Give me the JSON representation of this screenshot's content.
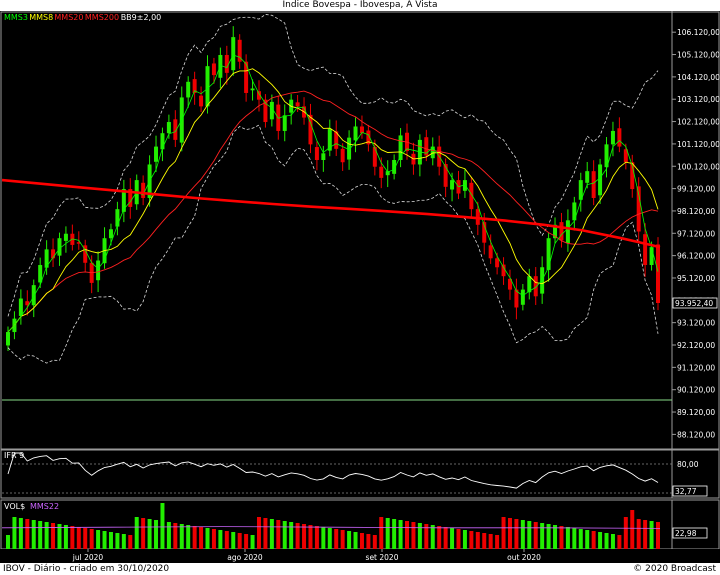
{
  "window": {
    "title": "Indice Bovespa - Ibovespa, A Vista"
  },
  "footer": {
    "left": "IBOV - Diário - criado em 30/10/2020",
    "right": "© 2020 Broadcast"
  },
  "colors": {
    "up": "#22ee00",
    "down": "#ee0000",
    "mms3": "#00ff00",
    "mms8": "#ffff00",
    "mms20": "#ff2020",
    "mms200": "#ff0000",
    "bands": "#dddddd",
    "volume_avg": "#cc66ff"
  },
  "chart_data": [
    {
      "type": "candlestick",
      "panel": "price",
      "legend": [
        {
          "label": "MMS3",
          "color": "#00ff00"
        },
        {
          "label": "MMS8",
          "color": "#ffff00"
        },
        {
          "label": "MMS20",
          "color": "#ff2020"
        },
        {
          "label": "MMS200",
          "color": "#ff2020"
        },
        {
          "label": "BB9±2,00",
          "color": "#ffffff"
        }
      ],
      "y_ticks": [
        "106.120,00",
        "105.120,00",
        "104.120,00",
        "103.120,00",
        "102.120,00",
        "101.120,00",
        "100.120,00",
        "99.120,00",
        "98.120,00",
        "97.120,00",
        "96.120,00",
        "95.120,00",
        "94.120,00",
        "93.120,00",
        "92.120,00",
        "91.120,00",
        "90.120,00",
        "89.120,00",
        "88.120,00"
      ],
      "ylim": [
        87600,
        106800
      ],
      "last_value_label": "93.952,40",
      "x_ticks": [
        "jul 2020",
        "ago 2020",
        "set 2020",
        "out 2020"
      ],
      "closes": [
        92700,
        93300,
        94200,
        93900,
        94800,
        95700,
        96400,
        96000,
        96900,
        97100,
        96600,
        96700,
        95800,
        94900,
        95900,
        96900,
        97300,
        98200,
        99100,
        98300,
        99500,
        98700,
        100200,
        101000,
        101600,
        102100,
        101300,
        103200,
        103900,
        103400,
        102800,
        104600,
        104200,
        105100,
        104300,
        105900,
        104800,
        103400,
        103600,
        103100,
        102100,
        103000,
        101700,
        102400,
        103100,
        102800,
        102300,
        101100,
        100400,
        100700,
        101800,
        100900,
        100300,
        101400,
        101900,
        101600,
        101100,
        100100,
        99600,
        99900,
        100400,
        101500,
        100800,
        100200,
        101300,
        100600,
        101000,
        100100,
        99200,
        99500,
        98900,
        99500,
        98200,
        97500,
        96700,
        96000,
        95600,
        95200,
        94600,
        93800,
        94600,
        95200,
        94300,
        95600,
        96900,
        97500,
        96800,
        97700,
        98500,
        99500,
        99900,
        98700,
        100200,
        101100,
        101700,
        101000,
        100300,
        99100,
        97200,
        95700,
        96500,
        94000
      ],
      "series": [
        {
          "name": "MMS200",
          "values": [
            99500,
            99340,
            99180,
            99020,
            98860,
            98700,
            98560,
            98430,
            98310,
            98210,
            98100,
            97980,
            97840,
            97690,
            97500,
            97250,
            96900,
            96500
          ]
        },
        {
          "name": "Volume avg",
          "values": [
            2.2,
            2.3,
            2.4,
            2.3,
            2.2,
            2.2,
            2.1
          ]
        }
      ],
      "rsi": {
        "label": "IFR 9",
        "ticks": [
          "80,00"
        ],
        "last_value_label": "32,77"
      },
      "volume": {
        "label": "VOL$",
        "avg_label": "MMS22",
        "last_value_label": "22,98"
      }
    }
  ]
}
